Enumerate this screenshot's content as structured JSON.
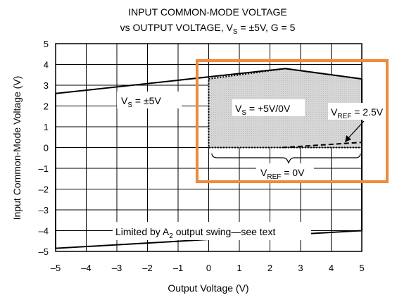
{
  "chart_data": {
    "type": "line",
    "title_line1": "INPUT COMMON-MODE VOLTAGE",
    "title_line2_main": "vs OUTPUT VOLTAGE, V",
    "title_line2_sub": "S",
    "title_line2_rest": " = ±5V, G = 5",
    "xlabel": "Output Voltage (V)",
    "ylabel": "Input Common-Mode Voltage (V)",
    "xlim": [
      -5,
      5
    ],
    "ylim": [
      -5,
      5
    ],
    "x_ticks": [
      "–5",
      "–4",
      "–3",
      "–2",
      "–1",
      "0",
      "1",
      "2",
      "3",
      "4",
      "5"
    ],
    "y_ticks": [
      "5",
      "4",
      "3",
      "2",
      "1",
      "0",
      "–1",
      "–2",
      "–3",
      "–4",
      "–5"
    ],
    "grid": true,
    "series": [
      {
        "name": "VS = ±5V",
        "style": "solid",
        "points": [
          [
            -5,
            2.6
          ],
          [
            2.5,
            3.8
          ],
          [
            5,
            3.3
          ],
          [
            5,
            -4.0
          ],
          [
            -5,
            -4.85
          ],
          [
            -5,
            2.6
          ]
        ]
      },
      {
        "name": "VS = +5V/0V, VREF = 0V",
        "style": "dotted",
        "fill": "#d4d4d4",
        "points": [
          [
            0,
            3.3
          ],
          [
            2.5,
            3.8
          ],
          [
            5,
            3.3
          ],
          [
            5,
            0
          ],
          [
            0,
            0
          ],
          [
            0,
            3.3
          ]
        ]
      },
      {
        "name": "VREF = 2.5V",
        "style": "dashed",
        "points": [
          [
            2.4,
            0
          ],
          [
            5,
            0.25
          ]
        ]
      }
    ],
    "annotations": {
      "vs_dual": {
        "main": "V",
        "sub": "S",
        "rest": " = ±5V"
      },
      "vs_single": {
        "main": "V",
        "sub": "S",
        "rest": " = +5V/0V"
      },
      "vref_25": {
        "main": "V",
        "sub": "REF",
        "rest": " = 2.5V"
      },
      "vref_0": {
        "main": "V",
        "sub": "REF",
        "rest": " = 0V"
      },
      "limit_main": "Limited by A",
      "limit_sub": "2",
      "limit_rest": " output swing—see text"
    },
    "highlight_color": "#f08a3c"
  }
}
